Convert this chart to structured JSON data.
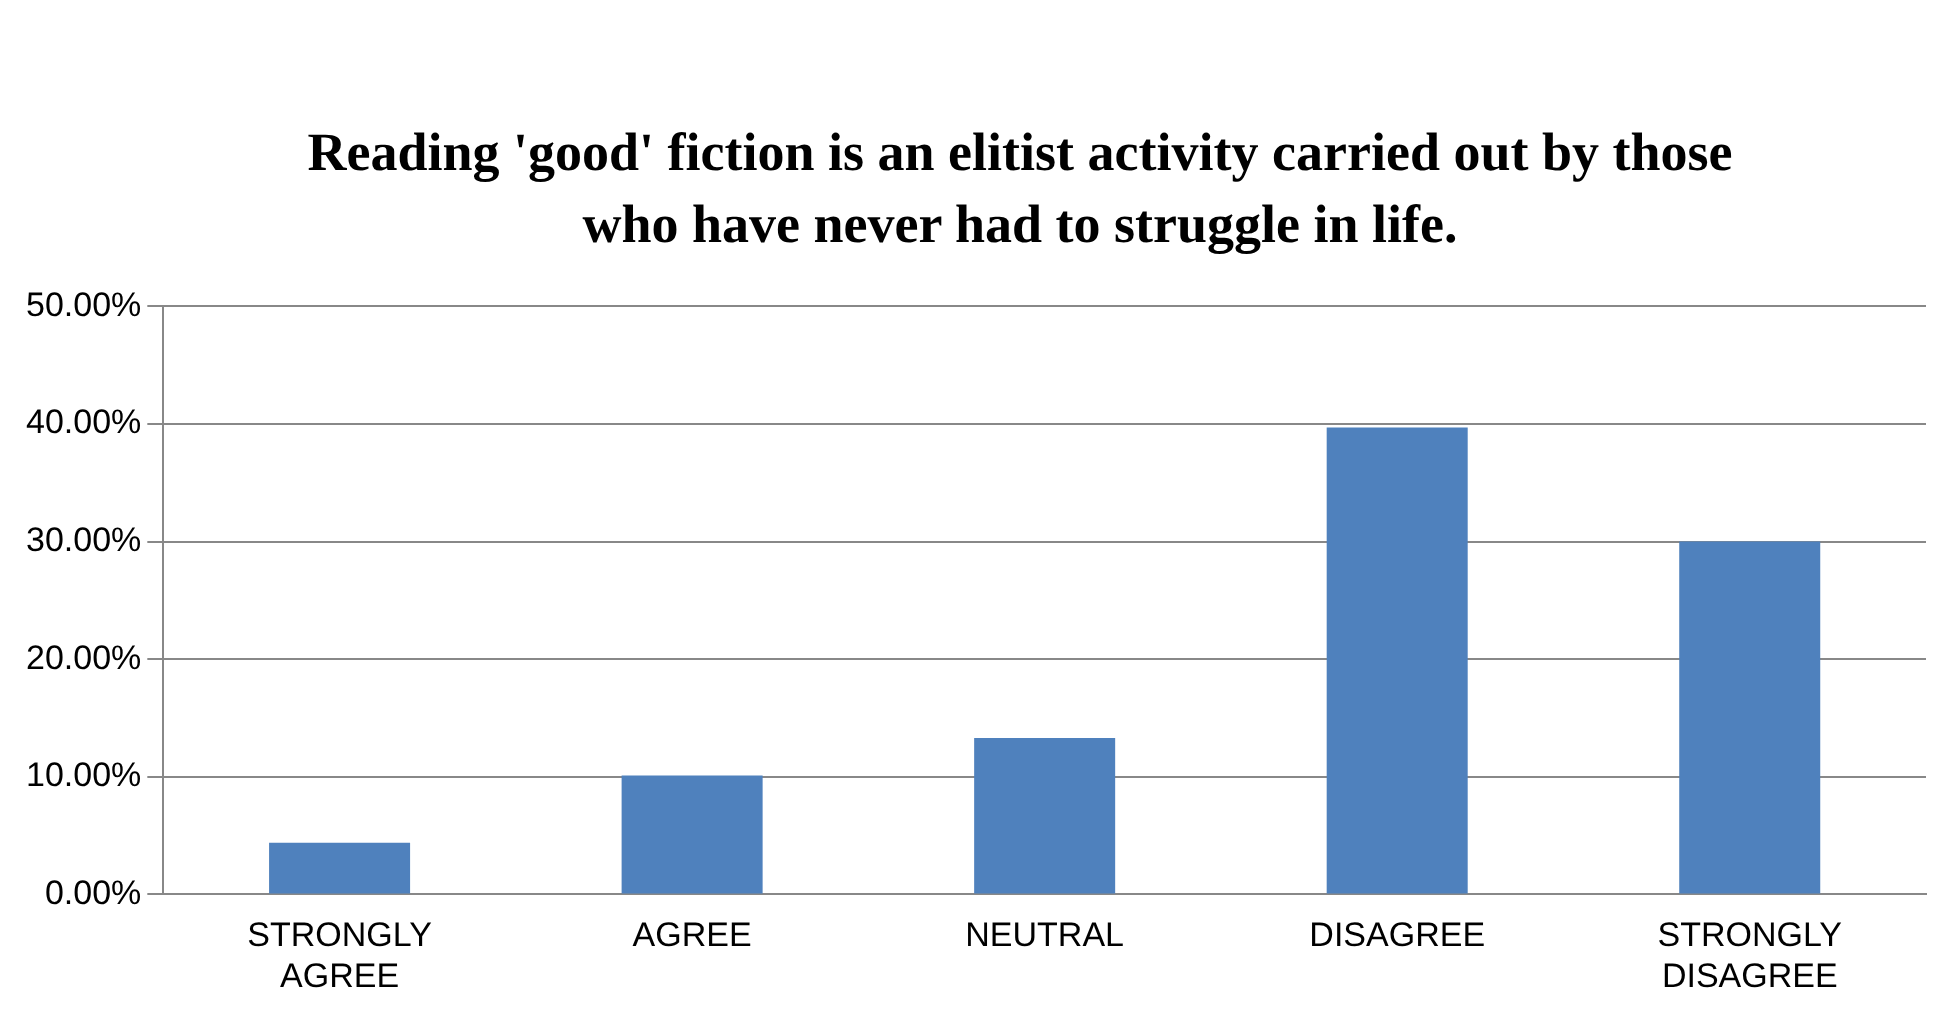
{
  "chart_data": {
    "type": "bar",
    "title": "Reading 'good' fiction is an elitist activity carried out by those who have never had to struggle in life.",
    "categories": [
      "STRONGLY AGREE",
      "AGREE",
      "NEUTRAL",
      "DISAGREE",
      "STRONGLY DISAGREE"
    ],
    "values": [
      4.4,
      10.1,
      13.3,
      39.7,
      30.0
    ],
    "color": "#4f81bd",
    "ylim": [
      0,
      50
    ],
    "yticks": [
      {
        "value": 0,
        "label": "0.00%"
      },
      {
        "value": 10,
        "label": "10.00%"
      },
      {
        "value": 20,
        "label": "20.00%"
      },
      {
        "value": 30,
        "label": "30.00%"
      },
      {
        "value": 40,
        "label": "40.00%"
      },
      {
        "value": 50,
        "label": "50.00%"
      }
    ],
    "grid": "y",
    "legend": false
  }
}
